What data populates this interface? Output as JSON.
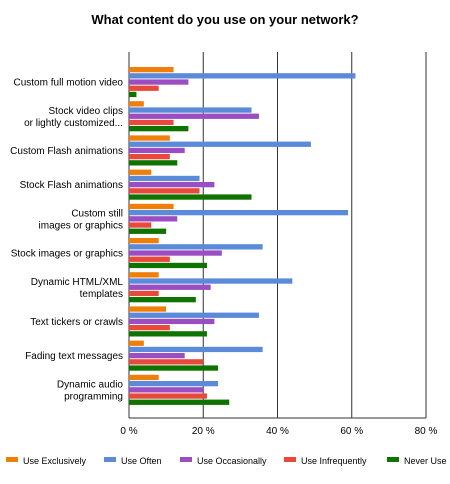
{
  "chart_data": {
    "type": "bar",
    "orientation": "horizontal",
    "title": "What content do you use on your network?",
    "categories": [
      "Custom full motion video",
      "Stock video clips or lightly customized...",
      "Custom Flash animations",
      "Stock Flash animations",
      "Custom still images or graphics",
      "Stock images or graphics",
      "Dynamic HTML/XML templates",
      "Text tickers or crawls",
      "Fading text messages",
      "Dynamic audio programming"
    ],
    "category_lines": [
      [
        "Custom full motion video"
      ],
      [
        "Stock video clips",
        "or lightly customized..."
      ],
      [
        "Custom Flash animations"
      ],
      [
        "Stock Flash animations"
      ],
      [
        "Custom still",
        "images or graphics"
      ],
      [
        "Stock images or graphics"
      ],
      [
        "Dynamic HTML/XML",
        "templates"
      ],
      [
        "Text tickers or crawls"
      ],
      [
        "Fading text messages"
      ],
      [
        "Dynamic audio",
        "programming"
      ]
    ],
    "series": [
      {
        "name": "Use Exclusively",
        "color": "#f07f09",
        "values": [
          12,
          4,
          11,
          6,
          12,
          8,
          8,
          10,
          4,
          8
        ]
      },
      {
        "name": "Use Often",
        "color": "#5b8ad9",
        "values": [
          61,
          33,
          49,
          19,
          59,
          36,
          44,
          35,
          36,
          24
        ]
      },
      {
        "name": "Use Occasionally",
        "color": "#9b4ec2",
        "values": [
          16,
          35,
          15,
          23,
          13,
          25,
          22,
          23,
          15,
          20
        ]
      },
      {
        "name": "Use Infrequently",
        "color": "#e8493b",
        "values": [
          8,
          12,
          11,
          19,
          6,
          11,
          8,
          11,
          20,
          21
        ]
      },
      {
        "name": "Never Use",
        "color": "#0f7300",
        "values": [
          2,
          16,
          13,
          33,
          10,
          21,
          18,
          21,
          24,
          27
        ]
      }
    ],
    "xlim": [
      0,
      80
    ],
    "xticks": [
      0,
      20,
      40,
      60,
      80
    ],
    "xtick_labels": [
      "0 %",
      "20 %",
      "40 %",
      "60 %",
      "80 %"
    ],
    "xlabel": "",
    "ylabel": "",
    "grid": "vertical",
    "legend": "bottom"
  }
}
